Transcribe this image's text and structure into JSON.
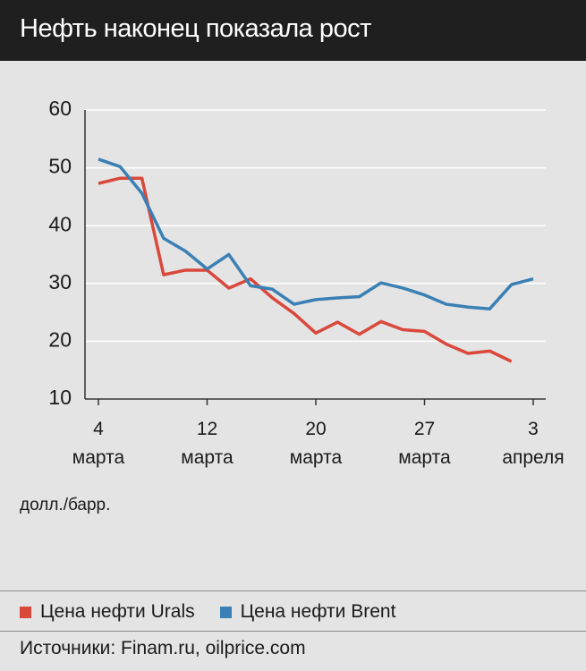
{
  "chart_data": {
    "type": "line",
    "title": "Нефть наконец показала рост",
    "y_label": "долл./барр.",
    "source": "Источники: Finam.ru, oilprice.com",
    "categories": [
      "4\nмарта",
      null,
      null,
      null,
      null,
      "12\nмарта",
      null,
      null,
      null,
      null,
      "20\nмарта",
      null,
      null,
      null,
      null,
      "27\nмарта",
      null,
      null,
      null,
      null,
      "3\nапреля"
    ],
    "series": [
      {
        "name": "Цена нефти Urals",
        "color": "#d9483b",
        "values": [
          47.3,
          48.2,
          48.2,
          31.5,
          32.3,
          32.3,
          29.2,
          30.8,
          27.5,
          24.8,
          21.4,
          23.3,
          21.2,
          23.4,
          22,
          21.7,
          19.5,
          17.9,
          18.3,
          16.5,
          null
        ]
      },
      {
        "name": "Цена нефти Brent",
        "color": "#3a80b4",
        "values": [
          51.5,
          50.2,
          45.6,
          37.8,
          35.6,
          32.5,
          35,
          29.6,
          29,
          26.4,
          27.2,
          27.5,
          27.7,
          30.1,
          29.2,
          28,
          26.4,
          25.9,
          25.6,
          29.8,
          30.8
        ]
      }
    ],
    "ylim": [
      10,
      60
    ],
    "yticks": [
      10,
      20,
      30,
      40,
      50,
      60
    ],
    "grid": true
  }
}
